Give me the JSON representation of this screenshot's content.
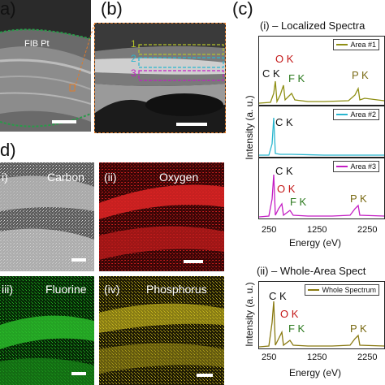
{
  "panels": {
    "a": {
      "letter": "a)",
      "fib_label": "FIB Pt"
    },
    "b": {
      "letter": "(b)",
      "box_labels": [
        "1",
        "2",
        "3"
      ]
    },
    "c": {
      "letter": "(c)",
      "title_i": "(i) – Localized Spectra",
      "title_ii": "(ii) – Whole-Area Spect",
      "ylabel": "Intensity (a. u.)",
      "xlabel": "Energy (eV)",
      "xticks": [
        "250",
        "1250",
        "2250"
      ]
    },
    "d": {
      "letter": "d)"
    }
  },
  "maps": [
    {
      "label": "i)",
      "element": "Carbon"
    },
    {
      "label": "(ii)",
      "element": "Oxygen"
    },
    {
      "label": "iii)",
      "element": "Fluorine"
    },
    {
      "label": "(iv)",
      "element": "Phosphorus"
    }
  ],
  "spectra": [
    {
      "legend": "Area #1",
      "color": "#8f8f14"
    },
    {
      "legend": "Area #2",
      "color": "#29b6cf"
    },
    {
      "legend": "Area #3",
      "color": "#c41ec4"
    },
    {
      "legend": "Whole Spectrum",
      "color": "#8a7a12"
    }
  ],
  "peaks": {
    "c": "C K",
    "o": "O K",
    "f": "F K",
    "p": "P K"
  },
  "colors": {
    "accent_orange": "#e07b2a",
    "area1": "#b5c42a",
    "area2": "#29b6cf",
    "area3": "#c41ec4"
  }
}
